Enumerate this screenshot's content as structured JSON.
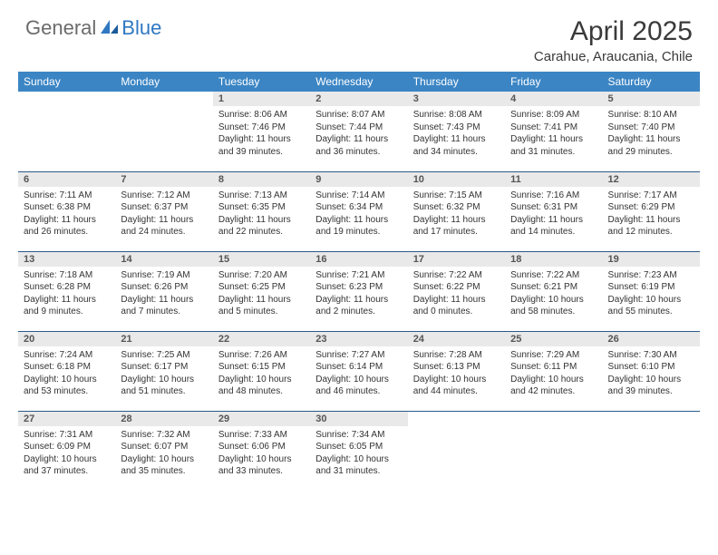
{
  "logo": {
    "textGeneral": "General",
    "textBlue": "Blue"
  },
  "title": "April 2025",
  "location": "Carahue, Araucania, Chile",
  "colors": {
    "headerBg": "#3b85c4",
    "headerText": "#ffffff",
    "dayBarBg": "#e9e9e9",
    "bodyText": "#333333",
    "accentBorder": "#2a5a8a",
    "logoBlue": "#2f78c1",
    "logoGray": "#6b6b6b"
  },
  "dayHeaders": [
    "Sunday",
    "Monday",
    "Tuesday",
    "Wednesday",
    "Thursday",
    "Friday",
    "Saturday"
  ],
  "weeks": [
    [
      null,
      null,
      {
        "n": "1",
        "sunrise": "8:06 AM",
        "sunset": "7:46 PM",
        "daylight": "11 hours and 39 minutes."
      },
      {
        "n": "2",
        "sunrise": "8:07 AM",
        "sunset": "7:44 PM",
        "daylight": "11 hours and 36 minutes."
      },
      {
        "n": "3",
        "sunrise": "8:08 AM",
        "sunset": "7:43 PM",
        "daylight": "11 hours and 34 minutes."
      },
      {
        "n": "4",
        "sunrise": "8:09 AM",
        "sunset": "7:41 PM",
        "daylight": "11 hours and 31 minutes."
      },
      {
        "n": "5",
        "sunrise": "8:10 AM",
        "sunset": "7:40 PM",
        "daylight": "11 hours and 29 minutes."
      }
    ],
    [
      {
        "n": "6",
        "sunrise": "7:11 AM",
        "sunset": "6:38 PM",
        "daylight": "11 hours and 26 minutes."
      },
      {
        "n": "7",
        "sunrise": "7:12 AM",
        "sunset": "6:37 PM",
        "daylight": "11 hours and 24 minutes."
      },
      {
        "n": "8",
        "sunrise": "7:13 AM",
        "sunset": "6:35 PM",
        "daylight": "11 hours and 22 minutes."
      },
      {
        "n": "9",
        "sunrise": "7:14 AM",
        "sunset": "6:34 PM",
        "daylight": "11 hours and 19 minutes."
      },
      {
        "n": "10",
        "sunrise": "7:15 AM",
        "sunset": "6:32 PM",
        "daylight": "11 hours and 17 minutes."
      },
      {
        "n": "11",
        "sunrise": "7:16 AM",
        "sunset": "6:31 PM",
        "daylight": "11 hours and 14 minutes."
      },
      {
        "n": "12",
        "sunrise": "7:17 AM",
        "sunset": "6:29 PM",
        "daylight": "11 hours and 12 minutes."
      }
    ],
    [
      {
        "n": "13",
        "sunrise": "7:18 AM",
        "sunset": "6:28 PM",
        "daylight": "11 hours and 9 minutes."
      },
      {
        "n": "14",
        "sunrise": "7:19 AM",
        "sunset": "6:26 PM",
        "daylight": "11 hours and 7 minutes."
      },
      {
        "n": "15",
        "sunrise": "7:20 AM",
        "sunset": "6:25 PM",
        "daylight": "11 hours and 5 minutes."
      },
      {
        "n": "16",
        "sunrise": "7:21 AM",
        "sunset": "6:23 PM",
        "daylight": "11 hours and 2 minutes."
      },
      {
        "n": "17",
        "sunrise": "7:22 AM",
        "sunset": "6:22 PM",
        "daylight": "11 hours and 0 minutes."
      },
      {
        "n": "18",
        "sunrise": "7:22 AM",
        "sunset": "6:21 PM",
        "daylight": "10 hours and 58 minutes."
      },
      {
        "n": "19",
        "sunrise": "7:23 AM",
        "sunset": "6:19 PM",
        "daylight": "10 hours and 55 minutes."
      }
    ],
    [
      {
        "n": "20",
        "sunrise": "7:24 AM",
        "sunset": "6:18 PM",
        "daylight": "10 hours and 53 minutes."
      },
      {
        "n": "21",
        "sunrise": "7:25 AM",
        "sunset": "6:17 PM",
        "daylight": "10 hours and 51 minutes."
      },
      {
        "n": "22",
        "sunrise": "7:26 AM",
        "sunset": "6:15 PM",
        "daylight": "10 hours and 48 minutes."
      },
      {
        "n": "23",
        "sunrise": "7:27 AM",
        "sunset": "6:14 PM",
        "daylight": "10 hours and 46 minutes."
      },
      {
        "n": "24",
        "sunrise": "7:28 AM",
        "sunset": "6:13 PM",
        "daylight": "10 hours and 44 minutes."
      },
      {
        "n": "25",
        "sunrise": "7:29 AM",
        "sunset": "6:11 PM",
        "daylight": "10 hours and 42 minutes."
      },
      {
        "n": "26",
        "sunrise": "7:30 AM",
        "sunset": "6:10 PM",
        "daylight": "10 hours and 39 minutes."
      }
    ],
    [
      {
        "n": "27",
        "sunrise": "7:31 AM",
        "sunset": "6:09 PM",
        "daylight": "10 hours and 37 minutes."
      },
      {
        "n": "28",
        "sunrise": "7:32 AM",
        "sunset": "6:07 PM",
        "daylight": "10 hours and 35 minutes."
      },
      {
        "n": "29",
        "sunrise": "7:33 AM",
        "sunset": "6:06 PM",
        "daylight": "10 hours and 33 minutes."
      },
      {
        "n": "30",
        "sunrise": "7:34 AM",
        "sunset": "6:05 PM",
        "daylight": "10 hours and 31 minutes."
      },
      null,
      null,
      null
    ]
  ],
  "labels": {
    "sunrise": "Sunrise:",
    "sunset": "Sunset:",
    "daylight": "Daylight:"
  }
}
